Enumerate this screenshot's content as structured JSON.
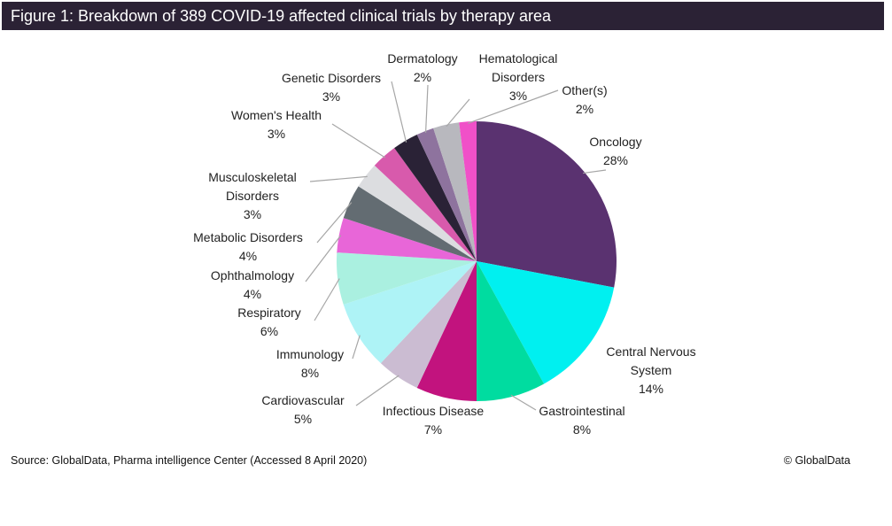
{
  "title": "Figure 1: Breakdown of 389 COVID-19 affected clinical trials by therapy area",
  "chart_data": {
    "type": "pie",
    "title": "Figure 1: Breakdown of 389 COVID-19 affected clinical trials by therapy area",
    "unit": "%",
    "start": "12 o'clock, clockwise",
    "slices": [
      {
        "label": "Oncology",
        "lines": [
          "Oncology"
        ],
        "value": 28,
        "pct": "28%",
        "color": "#5a3270"
      },
      {
        "label": "Central Nervous System",
        "lines": [
          "Central Nervous",
          "System"
        ],
        "value": 14,
        "pct": "14%",
        "color": "#00f0f0"
      },
      {
        "label": "Gastrointestinal",
        "lines": [
          "Gastrointestinal"
        ],
        "value": 8,
        "pct": "8%",
        "color": "#00dca0"
      },
      {
        "label": "Infectious Disease",
        "lines": [
          "Infectious Disease"
        ],
        "value": 7,
        "pct": "7%",
        "color": "#c2137e"
      },
      {
        "label": "Cardiovascular",
        "lines": [
          "Cardiovascular"
        ],
        "value": 5,
        "pct": "5%",
        "color": "#cbbcd2"
      },
      {
        "label": "Immunology",
        "lines": [
          "Immunology"
        ],
        "value": 8,
        "pct": "8%",
        "color": "#aef3f6"
      },
      {
        "label": "Respiratory",
        "lines": [
          "Respiratory"
        ],
        "value": 6,
        "pct": "6%",
        "color": "#aaf0e0"
      },
      {
        "label": "Ophthalmology",
        "lines": [
          "Ophthalmology"
        ],
        "value": 4,
        "pct": "4%",
        "color": "#e866d8"
      },
      {
        "label": "Metabolic Disorders",
        "lines": [
          "Metabolic Disorders"
        ],
        "value": 4,
        "pct": "4%",
        "color": "#636c72"
      },
      {
        "label": "Musculoskeletal Disorders",
        "lines": [
          "Musculoskeletal",
          "Disorders"
        ],
        "value": 3,
        "pct": "3%",
        "color": "#dcdde0"
      },
      {
        "label": "Women's Health",
        "lines": [
          "Women's Health"
        ],
        "value": 3,
        "pct": "3%",
        "color": "#d85aac"
      },
      {
        "label": "Genetic Disorders",
        "lines": [
          "Genetic Disorders"
        ],
        "value": 3,
        "pct": "3%",
        "color": "#2a2236"
      },
      {
        "label": "Dermatology",
        "lines": [
          "Dermatology"
        ],
        "value": 2,
        "pct": "2%",
        "color": "#8e739e"
      },
      {
        "label": "Hematological Disorders",
        "lines": [
          "Hematological",
          "Disorders"
        ],
        "value": 3,
        "pct": "3%",
        "color": "#b8b8be"
      },
      {
        "label": "Other(s)",
        "lines": [
          "Other(s)"
        ],
        "value": 2,
        "pct": "2%",
        "color": "#f050c8"
      }
    ]
  },
  "footer": {
    "source": "Source: GlobalData, Pharma intelligence Center (Accessed 8 April 2020)",
    "copyright": "© GlobalData"
  }
}
